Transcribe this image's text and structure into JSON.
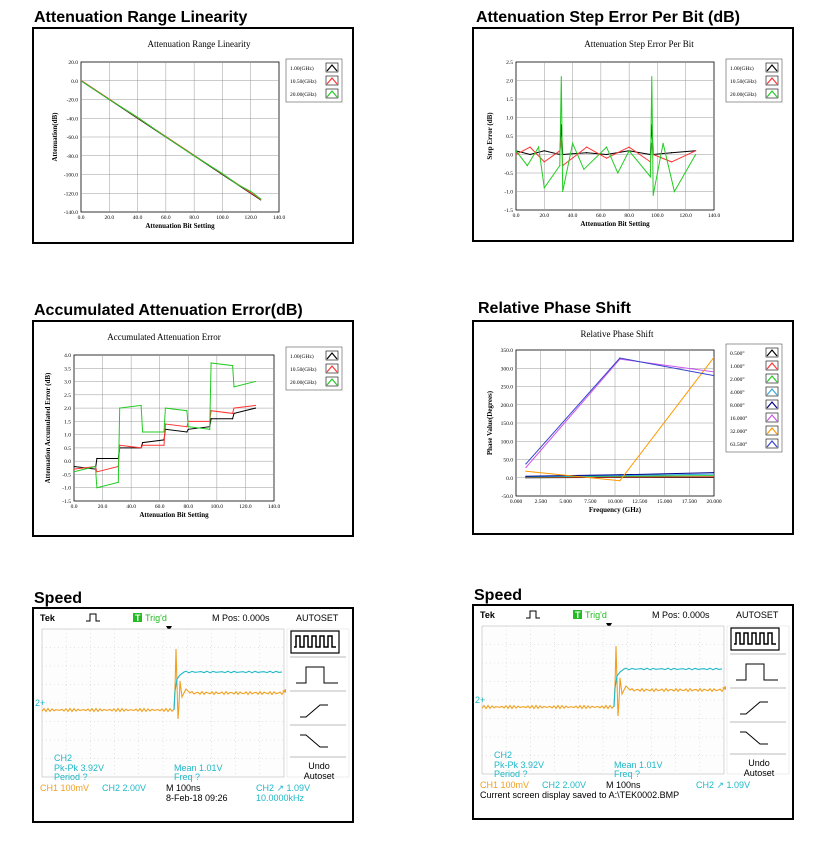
{
  "sections": {
    "linearity": "Attenuation Range Linearity",
    "step_error": "Attenuation Step Error Per Bit (dB)",
    "accumulated": "Accumulated Attenuation Error(dB)",
    "phase": "Relative Phase Shift",
    "speed_left": "Speed",
    "speed_right": "Speed"
  },
  "chart_data": [
    {
      "id": "linearity",
      "type": "line",
      "title": "Attenuation Range Linearity",
      "xlabel": "Attenuation Bit Setting",
      "ylabel": "Attenuation(dB)",
      "xlim": [
        0,
        140
      ],
      "ylim": [
        -140,
        20
      ],
      "xticks": [
        "0.0",
        "20.0",
        "40.0",
        "60.0",
        "80.0",
        "100.0",
        "120.0",
        "140.0"
      ],
      "yticks": [
        "20.0",
        "0.0",
        "-20.0",
        "-40.0",
        "-60.0",
        "-80.0",
        "-100.0",
        "-120.0",
        "-140.0"
      ],
      "legend": "top-right",
      "grid": true,
      "series": [
        {
          "name": "1.00(GHz)",
          "color": "#000000",
          "x": [
            0,
            127
          ],
          "y": [
            0,
            -127
          ]
        },
        {
          "name": "10.50(GHz)",
          "color": "#ff3333",
          "x": [
            0,
            127
          ],
          "y": [
            0.5,
            -126.5
          ]
        },
        {
          "name": "20.00(GHz)",
          "color": "#22cc22",
          "x": [
            0,
            20,
            40,
            60,
            80,
            100,
            110,
            120,
            127
          ],
          "y": [
            0,
            -20,
            -39,
            -60,
            -80,
            -99,
            -110,
            -118,
            -126
          ]
        }
      ]
    },
    {
      "id": "step_error",
      "type": "line",
      "title": "Attenuation Step Error Per Bit",
      "xlabel": "Attenuation Bit Setting",
      "ylabel": "Step Error (dB)",
      "xlim": [
        0,
        140
      ],
      "ylim": [
        -1.5,
        2.5
      ],
      "xticks": [
        "0.0",
        "20.0",
        "40.0",
        "60.0",
        "80.0",
        "100.0",
        "120.0",
        "140.0"
      ],
      "yticks": [
        "2.5",
        "2.0",
        "1.5",
        "1.0",
        "0.5",
        "0.0",
        "-0.5",
        "-1.0",
        "-1.5"
      ],
      "legend": "top-right",
      "grid": true,
      "series": [
        {
          "name": "1.00(GHz)",
          "color": "#000000",
          "x": [
            0,
            10,
            20,
            31,
            32,
            33,
            50,
            64,
            80,
            95,
            96,
            97,
            110,
            127
          ],
          "y": [
            0.1,
            0.0,
            0.1,
            0.0,
            0.8,
            0.0,
            0.05,
            0.0,
            0.1,
            0.0,
            0.8,
            0.0,
            0.05,
            0.1
          ]
        },
        {
          "name": "10.50(GHz)",
          "color": "#ff3333",
          "x": [
            0,
            10,
            20,
            31,
            32,
            33,
            50,
            64,
            80,
            95,
            96,
            97,
            110,
            127
          ],
          "y": [
            0.0,
            0.2,
            -0.2,
            0.1,
            0.4,
            -0.3,
            0.2,
            -0.1,
            0.2,
            -0.2,
            0.3,
            0.0,
            -0.2,
            0.1
          ]
        },
        {
          "name": "20.00(GHz)",
          "color": "#22cc22",
          "x": [
            0,
            8,
            16,
            20,
            31,
            32,
            33,
            40,
            48,
            64,
            72,
            80,
            95,
            96,
            97,
            104,
            112,
            127
          ],
          "y": [
            0.1,
            -0.3,
            0.2,
            -0.9,
            -0.3,
            2.1,
            -1.0,
            0.3,
            -0.4,
            0.2,
            -0.5,
            0.1,
            -0.6,
            2.1,
            -1.1,
            0.3,
            -1.0,
            0.0
          ]
        }
      ]
    },
    {
      "id": "accumulated",
      "type": "line",
      "title": "Accumulated Attenuation Error",
      "xlabel": "Attenuation Bit Setting",
      "ylabel": "Attenuation Accumulated Error (dB)",
      "xlim": [
        0,
        140
      ],
      "ylim": [
        -1.5,
        4.0
      ],
      "xticks": [
        "0.0",
        "20.0",
        "40.0",
        "60.0",
        "80.0",
        "100.0",
        "120.0",
        "140.0"
      ],
      "yticks": [
        "4.0",
        "3.5",
        "3.0",
        "2.5",
        "2.0",
        "1.5",
        "1.0",
        "0.5",
        "0.0",
        "-0.5",
        "-1.0",
        "-1.5"
      ],
      "legend": "top-right",
      "grid": true,
      "series": [
        {
          "name": "1.00(GHz)",
          "color": "#000000",
          "x": [
            0,
            15,
            16,
            31,
            32,
            47,
            48,
            63,
            64,
            79,
            80,
            95,
            96,
            111,
            112,
            127
          ],
          "y": [
            -0.2,
            -0.3,
            0.1,
            0.1,
            0.5,
            0.5,
            0.7,
            0.8,
            1.2,
            1.1,
            1.2,
            1.3,
            1.6,
            1.6,
            1.8,
            2.0
          ]
        },
        {
          "name": "10.50(GHz)",
          "color": "#ff3333",
          "x": [
            0,
            15,
            16,
            31,
            32,
            47,
            48,
            63,
            64,
            79,
            80,
            95,
            96,
            111,
            112,
            127
          ],
          "y": [
            -0.3,
            -0.2,
            -0.4,
            -0.2,
            0.6,
            0.5,
            0.6,
            0.6,
            1.4,
            1.3,
            1.5,
            1.5,
            1.9,
            1.8,
            2.0,
            2.1
          ]
        },
        {
          "name": "20.00(GHz)",
          "color": "#22cc22",
          "x": [
            0,
            15,
            16,
            31,
            32,
            47,
            48,
            63,
            64,
            79,
            80,
            95,
            96,
            111,
            112,
            127
          ],
          "y": [
            -0.4,
            -0.2,
            -1.0,
            -0.8,
            2.0,
            2.1,
            1.1,
            1.1,
            2.0,
            1.9,
            1.3,
            1.2,
            3.7,
            3.6,
            2.8,
            3.0
          ]
        }
      ]
    },
    {
      "id": "phase",
      "type": "line",
      "title": "Relative Phase Shift",
      "xlabel": "Frequency (GHz)",
      "ylabel": "Phase Value(Degrees)",
      "xlim": [
        0,
        20
      ],
      "ylim": [
        -50,
        350
      ],
      "xticks": [
        "0.000",
        "2.500",
        "5.000",
        "7.500",
        "10.000",
        "12.500",
        "15.000",
        "17.500",
        "20.000"
      ],
      "yticks": [
        "350.0",
        "300.0",
        "250.0",
        "200.0",
        "150.0",
        "100.0",
        "50.0",
        "0.0",
        "-50.0"
      ],
      "legend": "top-right",
      "grid": true,
      "series": [
        {
          "name": "0.500°",
          "color": "#000000",
          "x": [
            1,
            10.5,
            20
          ],
          "y": [
            0,
            1,
            1
          ]
        },
        {
          "name": "1.000°",
          "color": "#ff3333",
          "x": [
            1,
            10.5,
            20
          ],
          "y": [
            1,
            2,
            3
          ]
        },
        {
          "name": "2.000°",
          "color": "#22cc22",
          "x": [
            1,
            10.5,
            20
          ],
          "y": [
            2,
            4,
            6
          ]
        },
        {
          "name": "4.000°",
          "color": "#33aadd",
          "x": [
            1,
            10.5,
            20
          ],
          "y": [
            3,
            6,
            10
          ]
        },
        {
          "name": "8.000°",
          "color": "#000088",
          "x": [
            1,
            10.5,
            20
          ],
          "y": [
            4,
            8,
            14
          ]
        },
        {
          "name": "16.000°",
          "color": "#cc55ee",
          "x": [
            1,
            10.5,
            20
          ],
          "y": [
            28,
            325,
            290
          ]
        },
        {
          "name": "32.000°",
          "color": "#ff9900",
          "x": [
            1,
            10.5,
            20
          ],
          "y": [
            18,
            -8,
            330
          ]
        },
        {
          "name": "63.500°",
          "color": "#3344cc",
          "x": [
            1,
            10.5,
            20
          ],
          "y": [
            38,
            328,
            280
          ]
        }
      ]
    }
  ],
  "scope_left": {
    "brand": "Tek",
    "trig": "Trig'd",
    "trig_badge": "T",
    "mpos": "M Pos: 0.000s",
    "autoset": "AUTOSET",
    "ch_marker": "2+",
    "meas1": "CH2",
    "meas2": "Pk-Pk 3.92V",
    "meas3": "Period  ?",
    "meas4": "Mean 1.01V",
    "meas5": "Freq  ?",
    "ch1": "CH1  100mV",
    "ch2": "CH2  2.00V",
    "timebase": "M 100ns",
    "trig_setting": "CH2 ↗ 1.09V",
    "date": "8-Feb-18 09:26",
    "freq": "10.0000kHz",
    "undo": "Undo",
    "undo2": "Autoset"
  },
  "scope_right": {
    "brand": "Tek",
    "trig": "Trig'd",
    "trig_badge": "T",
    "mpos": "M Pos: 0.000s",
    "autoset": "AUTOSET",
    "ch_marker": "2+",
    "meas1": "CH2",
    "meas2": "Pk-Pk 3.92V",
    "meas3": "Period  ?",
    "meas4": "Mean 1.01V",
    "meas5": "Freq  ?",
    "ch1": "CH1  100mV",
    "ch2": "CH2  2.00V",
    "timebase": "M 100ns",
    "trig_setting": "CH2 ↗ 1.09V",
    "saved": "Current screen display saved to A:\\TEK0002.BMP",
    "undo": "Undo",
    "undo2": "Autoset"
  },
  "colors": {
    "scope_yellow": "#f0a020",
    "scope_cyan": "#20b8c8",
    "scope_green": "#22bb22",
    "scope_blue": "#1a6fb0"
  }
}
